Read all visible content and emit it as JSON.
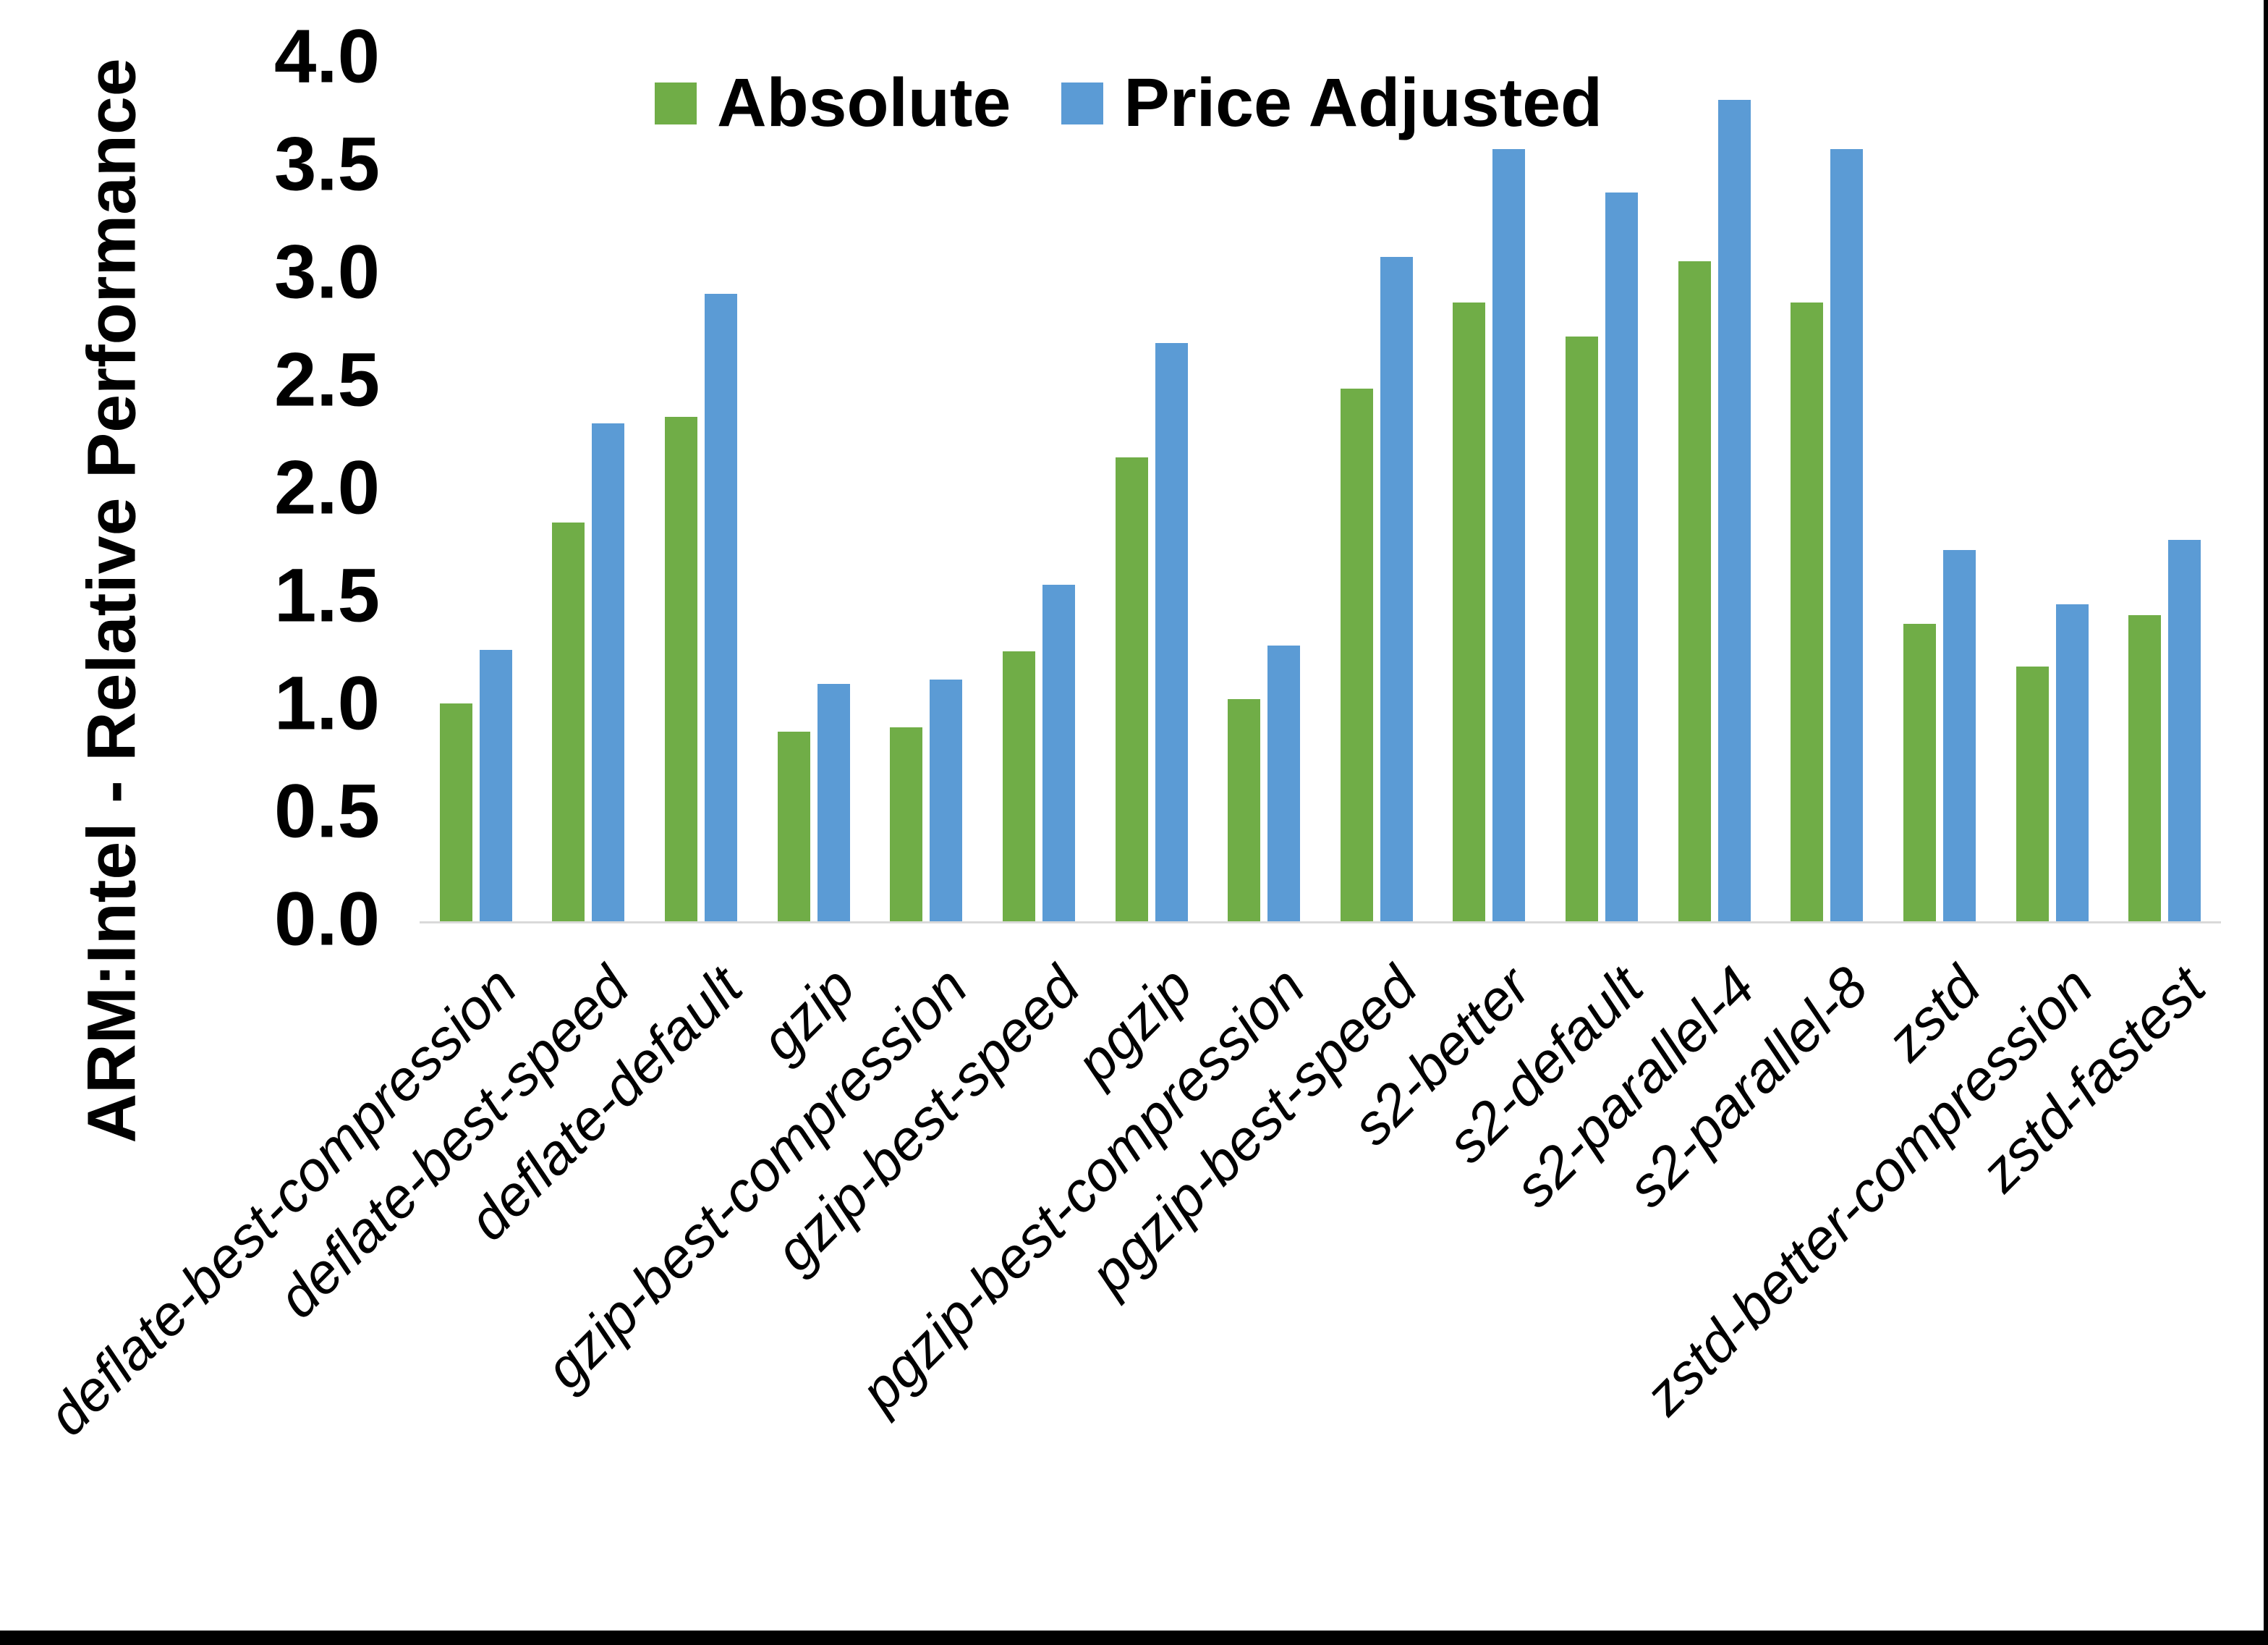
{
  "chart_data": {
    "type": "bar",
    "title": "",
    "xlabel": "",
    "ylabel": "ARM:Intel - Relative Performance",
    "ylim": [
      0.0,
      4.0
    ],
    "ytick_step": 0.5,
    "yticks": [
      "0.0",
      "0.5",
      "1.0",
      "1.5",
      "2.0",
      "2.5",
      "3.0",
      "3.5",
      "4.0"
    ],
    "grid": false,
    "legend_position": "top-center",
    "categories": [
      "deflate-best-compression",
      "deflate-best-speed",
      "deflate-default",
      "gzip",
      "gzip-best-compression",
      "gzip-best-speed",
      "pgzip",
      "pgzip-best-compression",
      "pgzip-best-speed",
      "s2-better",
      "s2-default",
      "s2-parallel-4",
      "s2-parallel-8",
      "zstd",
      "zstd-better-compression",
      "zstd-fastest"
    ],
    "series": [
      {
        "name": "Absolute",
        "color": "#70AD47",
        "values": [
          1.01,
          1.85,
          2.34,
          0.88,
          0.9,
          1.25,
          2.15,
          1.03,
          2.47,
          2.87,
          2.71,
          3.06,
          2.87,
          1.38,
          1.18,
          1.42
        ]
      },
      {
        "name": "Price Adjusted",
        "color": "#5B9BD5",
        "values": [
          1.26,
          2.31,
          2.91,
          1.1,
          1.12,
          1.56,
          2.68,
          1.28,
          3.08,
          3.58,
          3.38,
          3.81,
          3.58,
          1.72,
          1.47,
          1.77
        ]
      }
    ],
    "colors": {
      "axis_line": "#d9d9d9",
      "text": "#000000",
      "frame_border": "#000000"
    }
  }
}
